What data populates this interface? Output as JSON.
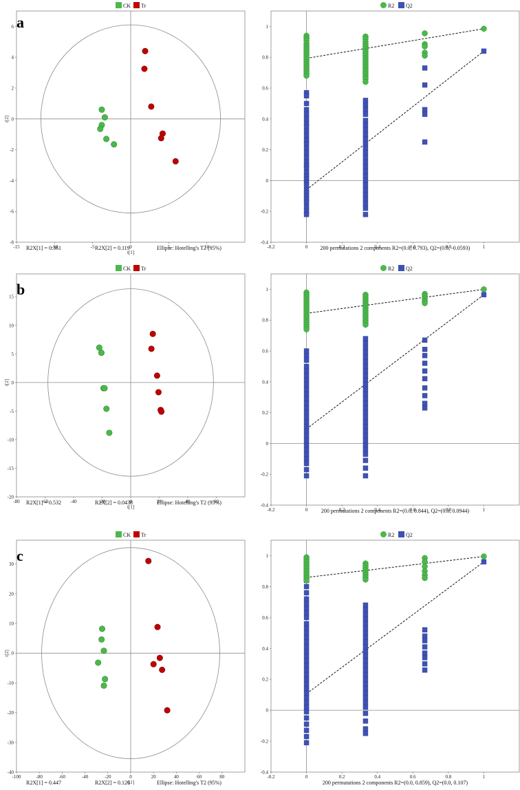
{
  "colors": {
    "ck": "#4cb84c",
    "tr": "#c00000",
    "r2": "#4cb84c",
    "q2": "#3f51b5",
    "axis": "#8a8a8a",
    "ellipse": "#8a8a8a"
  },
  "legend_score": {
    "ck": "CK",
    "tr": "Tr"
  },
  "legend_perm": {
    "r2": "R2",
    "q2": "Q2"
  },
  "chart_data": [
    {
      "panel": "a",
      "type": "scatter",
      "xlabel": "t[1]",
      "ylabel": "t[2]",
      "xlim": [
        -15,
        15
      ],
      "ylim": [
        -8,
        7
      ],
      "xticks": [
        -15,
        -10,
        -5,
        0,
        5,
        10
      ],
      "yticks": [
        -8,
        -6,
        -4,
        -2,
        0,
        2,
        4,
        6
      ],
      "ellipse": {
        "rx": 11.8,
        "ry": 6.1
      },
      "series": [
        {
          "name": "CK",
          "points": [
            [
              -3.8,
              0.6
            ],
            [
              -3.4,
              0.1
            ],
            [
              -3.8,
              -0.4
            ],
            [
              -4.0,
              -0.65
            ],
            [
              -3.2,
              -1.3
            ],
            [
              -2.2,
              -1.65
            ]
          ]
        },
        {
          "name": "Tr",
          "points": [
            [
              1.9,
              4.4
            ],
            [
              1.8,
              3.25
            ],
            [
              2.7,
              0.8
            ],
            [
              4.2,
              -0.95
            ],
            [
              4.0,
              -1.25
            ],
            [
              5.9,
              -2.75
            ]
          ]
        }
      ],
      "footer": {
        "r2x1": "R2X[1] = 0.361",
        "r2x2": "R2X[2] = 0.119",
        "ellipse_label": "Ellipse: Hotelling's T2 (95%)"
      }
    },
    {
      "panel": "a",
      "type": "scatter",
      "subtype": "permutation",
      "xlim": [
        -0.2,
        1.2
      ],
      "ylim": [
        -0.4,
        1.1
      ],
      "xticks": [
        -0.2,
        0,
        0.2,
        0.4,
        0.6,
        0.8,
        1
      ],
      "yticks": [
        -0.4,
        -0.2,
        0,
        0.2,
        0.4,
        0.6,
        0.8,
        1
      ],
      "r2_line": [
        [
          0,
          0.793
        ],
        [
          1,
          0.985
        ]
      ],
      "q2_line": [
        [
          0,
          -0.0593
        ],
        [
          1,
          0.84
        ]
      ],
      "r2_points": {
        "0": [
          0.94,
          0.925,
          0.91,
          0.89,
          0.875,
          0.86,
          0.845,
          0.83,
          0.815,
          0.8,
          0.785,
          0.77,
          0.755,
          0.74,
          0.725,
          0.71,
          0.695,
          0.68
        ],
        "0.333": [
          0.935,
          0.92,
          0.9,
          0.885,
          0.87,
          0.855,
          0.84,
          0.825,
          0.81,
          0.795,
          0.78,
          0.765,
          0.75,
          0.735,
          0.72,
          0.705,
          0.69,
          0.675,
          0.66,
          0.64
        ],
        "0.667": [
          0.955,
          0.885,
          0.87,
          0.83,
          0.81
        ],
        "1": [
          0.985
        ]
      },
      "q2_points": {
        "0": [
          0.57,
          0.55,
          0.5,
          0.46,
          0.43,
          0.4,
          0.37,
          0.35,
          0.32,
          0.29,
          0.26,
          0.24,
          0.21,
          0.18,
          0.15,
          0.12,
          0.1,
          0.08,
          0.05,
          0.03,
          0.01,
          -0.01,
          -0.03,
          -0.06,
          -0.08,
          -0.1,
          -0.12,
          -0.14,
          -0.17,
          -0.2,
          -0.22
        ],
        "0.333": [
          0.52,
          0.49,
          0.46,
          0.43,
          0.39,
          0.36,
          0.33,
          0.3,
          0.27,
          0.24,
          0.21,
          0.18,
          0.15,
          0.12,
          0.09,
          0.06,
          0.03,
          0.0,
          -0.03,
          -0.06,
          -0.09,
          -0.12,
          -0.15,
          -0.18,
          -0.22
        ],
        "0.667": [
          0.73,
          0.62,
          0.46,
          0.43,
          0.25
        ],
        "1": [
          0.84
        ]
      },
      "footer": "200 permutations 2 components  R2=(0.0, 0.793), Q2=(0.0, -0.0593)"
    },
    {
      "panel": "b",
      "type": "scatter",
      "xlabel": "t[1]",
      "ylabel": "t[2]",
      "xlim": [
        -80,
        80
      ],
      "ylim": [
        -20,
        19
      ],
      "xticks": [
        -80,
        -60,
        -40,
        -20,
        0,
        20,
        40,
        60
      ],
      "yticks": [
        -20,
        -15,
        -10,
        -5,
        0,
        5,
        10,
        15
      ],
      "ellipse": {
        "rx": 58,
        "ry": 16.4
      },
      "series": [
        {
          "name": "CK",
          "points": [
            [
              -22,
              6.1
            ],
            [
              -20.5,
              5.2
            ],
            [
              -19,
              -1.0
            ],
            [
              -18.3,
              -1.0
            ],
            [
              -17,
              -4.6
            ],
            [
              -15,
              -8.8
            ]
          ]
        },
        {
          "name": "Tr",
          "points": [
            [
              15.5,
              8.5
            ],
            [
              14.5,
              5.9
            ],
            [
              18.5,
              1.2
            ],
            [
              19.5,
              -1.7
            ],
            [
              21,
              -4.8
            ],
            [
              21.5,
              -5.1
            ]
          ]
        }
      ],
      "footer": {
        "r2x1": "R2X[1] = 0.532",
        "r2x2": "R2X[2] = 0.0438",
        "ellipse_label": "Ellipse: Hotelling's T2 (95%)"
      }
    },
    {
      "panel": "b",
      "type": "scatter",
      "subtype": "permutation",
      "xlim": [
        -0.2,
        1.2
      ],
      "ylim": [
        -0.4,
        1.1
      ],
      "xticks": [
        -0.2,
        0,
        0.2,
        0.4,
        0.6,
        0.8,
        1
      ],
      "yticks": [
        -0.4,
        -0.2,
        0,
        0.2,
        0.4,
        0.6,
        0.8,
        1
      ],
      "r2_line": [
        [
          0,
          0.844
        ],
        [
          1,
          1.0
        ]
      ],
      "q2_line": [
        [
          0,
          0.0944
        ],
        [
          1,
          0.965
        ]
      ],
      "r2_points": {
        "0": [
          0.98,
          0.965,
          0.95,
          0.935,
          0.92,
          0.905,
          0.89,
          0.875,
          0.86,
          0.845,
          0.83,
          0.815,
          0.8,
          0.785,
          0.77,
          0.755,
          0.74
        ],
        "0.333": [
          0.965,
          0.95,
          0.935,
          0.92,
          0.905,
          0.89,
          0.875,
          0.86,
          0.845,
          0.83,
          0.815,
          0.8,
          0.785,
          0.77
        ],
        "0.667": [
          0.97,
          0.955,
          0.94,
          0.925,
          0.91
        ],
        "1": [
          1.0
        ]
      },
      "q2_points": {
        "0": [
          0.6,
          0.57,
          0.54,
          0.5,
          0.47,
          0.44,
          0.41,
          0.38,
          0.35,
          0.32,
          0.29,
          0.26,
          0.23,
          0.2,
          0.17,
          0.14,
          0.11,
          0.08,
          0.05,
          0.02,
          -0.01,
          -0.04,
          -0.07,
          -0.1,
          -0.13,
          -0.17,
          -0.21
        ],
        "0.333": [
          0.68,
          0.65,
          0.62,
          0.59,
          0.56,
          0.53,
          0.5,
          0.47,
          0.44,
          0.41,
          0.38,
          0.35,
          0.32,
          0.29,
          0.26,
          0.23,
          0.2,
          0.17,
          0.14,
          0.11,
          0.08,
          0.05,
          0.02,
          -0.01,
          -0.04,
          -0.07,
          -0.11,
          -0.16,
          -0.21
        ],
        "0.667": [
          0.67,
          0.61,
          0.57,
          0.52,
          0.47,
          0.42,
          0.36,
          0.31,
          0.26,
          0.23
        ],
        "1": [
          0.965
        ]
      },
      "footer": "200 permutations 2 components R2=(0.0, 0.844), Q2=(0.0, 0.0944)"
    },
    {
      "panel": "c",
      "type": "scatter",
      "xlabel": "t[1]",
      "ylabel": "t[2]",
      "xlim": [
        -100,
        100
      ],
      "ylim": [
        -40,
        38
      ],
      "xticks": [
        -100,
        -80,
        -60,
        -40,
        -20,
        0,
        20,
        40,
        60,
        80
      ],
      "yticks": [
        -40,
        -30,
        -20,
        -10,
        0,
        10,
        20,
        30
      ],
      "ellipse": {
        "rx": 78,
        "ry": 35.5
      },
      "series": [
        {
          "name": "CK",
          "points": [
            [
              -25,
              8.2
            ],
            [
              -25.5,
              4.6
            ],
            [
              -23.5,
              0.8
            ],
            [
              -28.5,
              -3.2
            ],
            [
              -22.5,
              -8.7
            ],
            [
              -23.5,
              -10.9
            ]
          ]
        },
        {
          "name": "Tr",
          "points": [
            [
              15.5,
              31.0
            ],
            [
              23.5,
              8.8
            ],
            [
              25.5,
              -1.6
            ],
            [
              20,
              -3.7
            ],
            [
              27.5,
              -5.6
            ],
            [
              32,
              -19.2
            ]
          ]
        }
      ],
      "footer": {
        "r2x1": "R2X[1] = 0.447",
        "r2x2": "R2X[2] = 0.126",
        "ellipse_label": "Ellipse: Hotelling's T2 (95%)"
      }
    },
    {
      "panel": "c",
      "type": "scatter",
      "subtype": "permutation",
      "xlim": [
        -0.2,
        1.2
      ],
      "ylim": [
        -0.4,
        1.1
      ],
      "xticks": [
        -0.2,
        0,
        0.2,
        0.4,
        0.6,
        0.8,
        1
      ],
      "yticks": [
        -0.4,
        -0.2,
        0,
        0.2,
        0.4,
        0.6,
        0.8,
        1
      ],
      "r2_line": [
        [
          0,
          0.859
        ],
        [
          1,
          0.995
        ]
      ],
      "q2_line": [
        [
          0,
          0.107
        ],
        [
          1,
          0.96
        ]
      ],
      "r2_points": {
        "0": [
          0.99,
          0.975,
          0.96,
          0.945,
          0.93,
          0.915,
          0.9,
          0.885,
          0.87,
          0.855,
          0.84
        ],
        "0.333": [
          0.95,
          0.935,
          0.92,
          0.905,
          0.89,
          0.875,
          0.86,
          0.845
        ],
        "0.667": [
          0.985,
          0.96,
          0.93,
          0.9,
          0.875,
          0.855
        ],
        "1": [
          0.995
        ]
      },
      "q2_points": {
        "0": [
          0.96,
          0.92,
          0.88,
          0.84,
          0.8,
          0.76,
          0.72,
          0.69,
          0.66,
          0.63,
          0.6,
          0.56,
          0.53,
          0.5,
          0.47,
          0.44,
          0.41,
          0.38,
          0.35,
          0.32,
          0.29,
          0.26,
          0.23,
          0.2,
          0.17,
          0.14,
          0.11,
          0.08,
          0.05,
          0.02,
          -0.01,
          -0.05,
          -0.09,
          -0.13,
          -0.17,
          -0.21
        ],
        "0.333": [
          0.68,
          0.65,
          0.62,
          0.59,
          0.56,
          0.53,
          0.5,
          0.47,
          0.44,
          0.41,
          0.38,
          0.35,
          0.32,
          0.29,
          0.26,
          0.23,
          0.2,
          0.17,
          0.14,
          0.11,
          0.08,
          0.05,
          0.02,
          -0.02,
          -0.07,
          -0.12,
          -0.15
        ],
        "0.667": [
          0.52,
          0.48,
          0.45,
          0.41,
          0.37,
          0.34,
          0.3,
          0.26
        ],
        "1": [
          0.96
        ]
      },
      "footer": "200 permutations 2 components R2=(0.0, 0.859), Q2=(0.0, 0.107)"
    }
  ]
}
